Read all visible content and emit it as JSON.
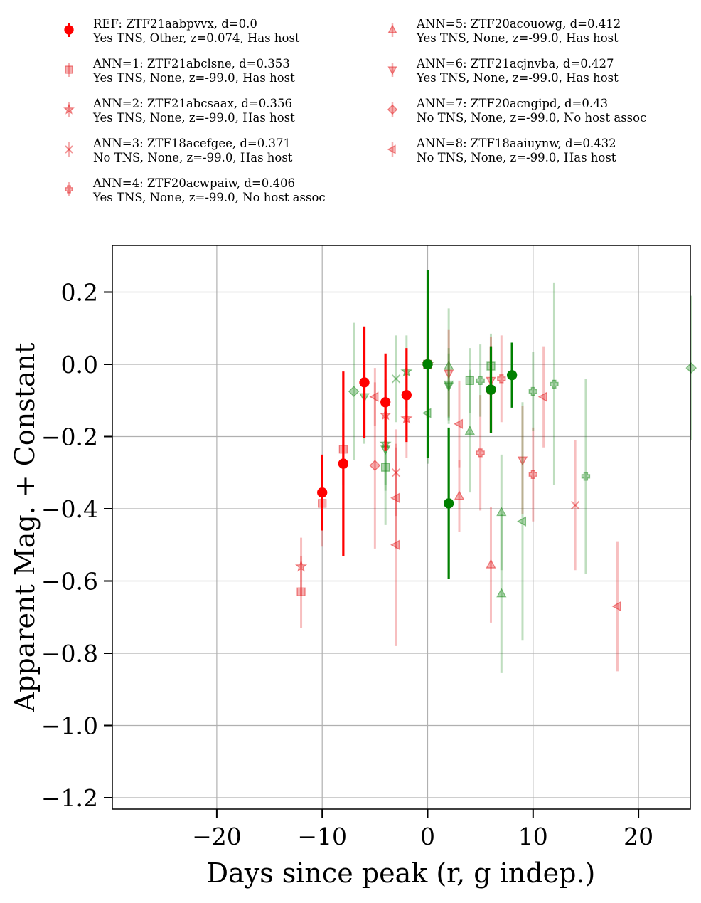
{
  "chart_data": {
    "type": "scatter",
    "xlabel": "Days since peak (r, g indep.)",
    "ylabel": "Apparent Mag. + Constant",
    "xlim": [
      -29.5,
      25
    ],
    "ylim": [
      -1.23,
      0.33
    ],
    "xticks": [
      -20,
      -10,
      0,
      10,
      20
    ],
    "xtick_labels": [
      "−20",
      "−10",
      "0",
      "10",
      "20"
    ],
    "yticks": [
      0.2,
      0.0,
      -0.2,
      -0.4,
      -0.6,
      -0.8,
      -1.0,
      -1.2
    ],
    "ytick_labels": [
      "0.2",
      "0.0",
      "−0.2",
      "−0.4",
      "−0.6",
      "−0.8",
      "−1.0",
      "−1.2"
    ],
    "grid": true,
    "legend_position": "top (two columns above plot)",
    "band_colors": {
      "r": "#e31a1c",
      "g": "#1a8a1a",
      "ref_r": "#ff0000",
      "ref_g": "#008000"
    },
    "series": [
      {
        "name": "REF: ZTF21aabpvvx, d=0.0",
        "detail": "Yes TNS, Other, z=0.074, Has host",
        "marker": "circle",
        "points": [
          {
            "band": "r",
            "x": -10,
            "y": -0.355,
            "err": 0.105
          },
          {
            "band": "r",
            "x": -8,
            "y": -0.275,
            "err": 0.255
          },
          {
            "band": "r",
            "x": -6,
            "y": -0.05,
            "err": 0.155
          },
          {
            "band": "r",
            "x": -4,
            "y": -0.105,
            "err": 0.135
          },
          {
            "band": "r",
            "x": -2,
            "y": -0.085,
            "err": 0.13
          },
          {
            "band": "r",
            "x": 0,
            "y": 0.0,
            "err": 0.15
          },
          {
            "band": "r",
            "x": 6,
            "y": -0.07,
            "err": 0.12
          },
          {
            "band": "g",
            "x": 0,
            "y": 0.0,
            "err": 0.26
          },
          {
            "band": "g",
            "x": 2,
            "y": -0.385,
            "err": 0.21
          },
          {
            "band": "g",
            "x": 6,
            "y": -0.07,
            "err": 0.12
          },
          {
            "band": "g",
            "x": 8,
            "y": -0.03,
            "err": 0.09
          }
        ]
      },
      {
        "name": "ANN=1: ZTF21abclsne, d=0.353",
        "detail": "Yes TNS, None, z=-99.0, Has host",
        "marker": "square",
        "points": [
          {
            "band": "r",
            "x": -12,
            "y": -0.63,
            "err": 0.1
          },
          {
            "band": "r",
            "x": -10,
            "y": -0.385,
            "err": 0.12
          },
          {
            "band": "r",
            "x": -8,
            "y": -0.235,
            "err": 0.1
          },
          {
            "band": "r",
            "x": 0,
            "y": 0.0,
            "err": 0.1
          },
          {
            "band": "g",
            "x": -4,
            "y": -0.285,
            "err": 0.16
          },
          {
            "band": "g",
            "x": 0,
            "y": 0.0,
            "err": 0.1
          },
          {
            "band": "g",
            "x": 4,
            "y": -0.045,
            "err": 0.09
          },
          {
            "band": "g",
            "x": 6,
            "y": -0.005,
            "err": 0.09
          }
        ]
      },
      {
        "name": "ANN=2: ZTF21abcsaax, d=0.356",
        "detail": "Yes TNS, None, z=-99.0, Has host",
        "marker": "star",
        "points": [
          {
            "band": "r",
            "x": -12,
            "y": -0.56,
            "err": 0.08
          },
          {
            "band": "r",
            "x": -4,
            "y": -0.14,
            "err": 0.1
          },
          {
            "band": "r",
            "x": -2,
            "y": -0.15,
            "err": 0.11
          },
          {
            "band": "r",
            "x": 0,
            "y": 0.0,
            "err": 0.1
          },
          {
            "band": "g",
            "x": -4,
            "y": -0.22,
            "err": 0.13
          },
          {
            "band": "g",
            "x": -2,
            "y": -0.02,
            "err": 0.1
          },
          {
            "band": "g",
            "x": 0,
            "y": 0.0,
            "err": 0.09
          }
        ]
      },
      {
        "name": "ANN=3: ZTF18acefgee, d=0.371",
        "detail": "No TNS, None, z=-99.0, Has host",
        "marker": "x",
        "points": [
          {
            "band": "r",
            "x": -3,
            "y": -0.3,
            "err": 0.12
          },
          {
            "band": "r",
            "x": 14,
            "y": -0.39,
            "err": 0.18
          },
          {
            "band": "g",
            "x": -3,
            "y": -0.04,
            "err": 0.12
          }
        ]
      },
      {
        "name": "ANN=4: ZTF20acwpaiw, d=0.406",
        "detail": "Yes TNS, None, z=-99.0, No host assoc",
        "marker": "plus",
        "points": [
          {
            "band": "r",
            "x": 5,
            "y": -0.245,
            "err": 0.16
          },
          {
            "band": "r",
            "x": 7,
            "y": -0.04,
            "err": 0.12
          },
          {
            "band": "r",
            "x": 10,
            "y": -0.305,
            "err": 0.13
          },
          {
            "band": "g",
            "x": 5,
            "y": -0.045,
            "err": 0.1
          },
          {
            "band": "g",
            "x": 10,
            "y": -0.075,
            "err": 0.11
          },
          {
            "band": "g",
            "x": 12,
            "y": -0.055,
            "err": 0.28
          },
          {
            "band": "g",
            "x": 15,
            "y": -0.31,
            "err": 0.27
          }
        ]
      },
      {
        "name": "ANN=5: ZTF20acouowg, d=0.412",
        "detail": "Yes TNS, None, z=-99.0, Has host",
        "marker": "triangle-up",
        "points": [
          {
            "band": "r",
            "x": 3,
            "y": -0.365,
            "err": 0.1
          },
          {
            "band": "r",
            "x": 6,
            "y": -0.555,
            "err": 0.16
          },
          {
            "band": "g",
            "x": 2,
            "y": -0.005,
            "err": 0.16
          },
          {
            "band": "g",
            "x": 4,
            "y": -0.185,
            "err": 0.17
          },
          {
            "band": "g",
            "x": 7,
            "y": -0.41,
            "err": 0.16
          },
          {
            "band": "g",
            "x": 7,
            "y": -0.635,
            "err": 0.22
          }
        ]
      },
      {
        "name": "ANN=6: ZTF21acjnvba, d=0.427",
        "detail": "Yes TNS, None, z=-99.0, Has host",
        "marker": "triangle-down",
        "points": [
          {
            "band": "r",
            "x": 2,
            "y": -0.025,
            "err": 0.12
          },
          {
            "band": "r",
            "x": 6,
            "y": -0.045,
            "err": 0.12
          },
          {
            "band": "r",
            "x": 9,
            "y": -0.265,
            "err": 0.15
          },
          {
            "band": "g",
            "x": -6,
            "y": -0.09,
            "err": 0.13
          },
          {
            "band": "g",
            "x": -4,
            "y": -0.235,
            "err": 0.1
          },
          {
            "band": "g",
            "x": 2,
            "y": -0.055,
            "err": 0.1
          },
          {
            "band": "g",
            "x": 2,
            "y": -0.06,
            "err": 0.09
          }
        ]
      },
      {
        "name": "ANN=7: ZTF20acngipd, d=0.43",
        "detail": "No TNS, None, z=-99.0, No host assoc",
        "marker": "diamond",
        "points": [
          {
            "band": "r",
            "x": -5,
            "y": -0.28,
            "err": 0.23
          },
          {
            "band": "g",
            "x": -7,
            "y": -0.075,
            "err": 0.19
          },
          {
            "band": "g",
            "x": 25,
            "y": -0.01,
            "err": 0.2
          }
        ]
      },
      {
        "name": "ANN=8: ZTF18aaiuynw, d=0.432",
        "detail": "No TNS, None, z=-99.0, Has host",
        "marker": "triangle-left",
        "points": [
          {
            "band": "r",
            "x": -5,
            "y": -0.09,
            "err": 0.08
          },
          {
            "band": "r",
            "x": -3,
            "y": -0.37,
            "err": 0.14
          },
          {
            "band": "r",
            "x": -3,
            "y": -0.5,
            "err": 0.28
          },
          {
            "band": "r",
            "x": 3,
            "y": -0.165,
            "err": 0.12
          },
          {
            "band": "r",
            "x": 11,
            "y": -0.09,
            "err": 0.14
          },
          {
            "band": "r",
            "x": 18,
            "y": -0.67,
            "err": 0.18
          },
          {
            "band": "g",
            "x": 0,
            "y": -0.135,
            "err": 0.14
          },
          {
            "band": "g",
            "x": 9,
            "y": -0.435,
            "err": 0.33
          }
        ]
      }
    ]
  }
}
